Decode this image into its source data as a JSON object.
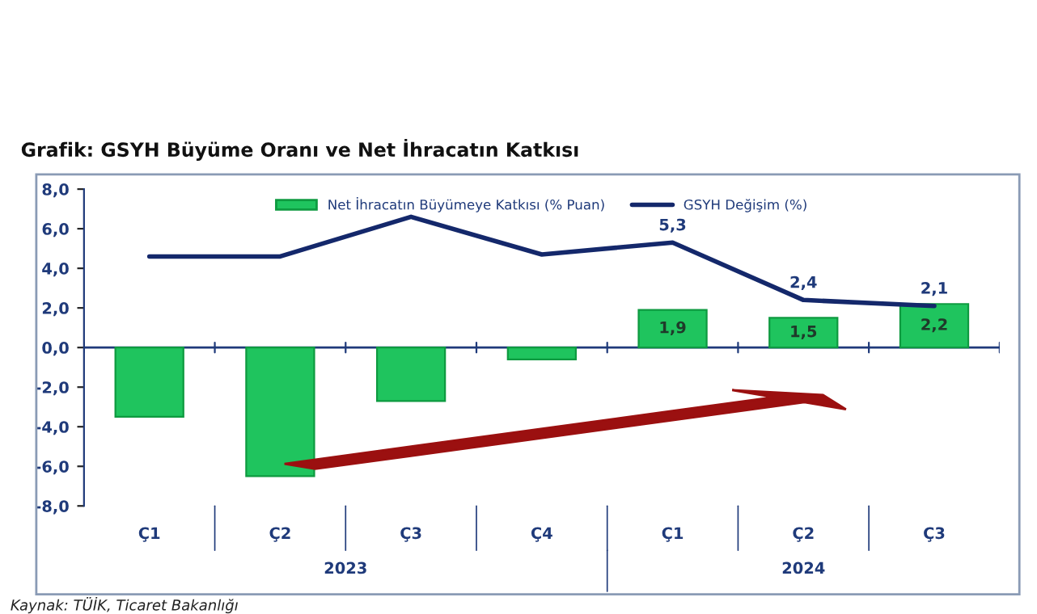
{
  "chart_data": {
    "type": "bar",
    "title": "Grafik: GSYH Büyüme Oranı ve Net İhracatın Katkısı",
    "categories": [
      "Ç1",
      "Ç2",
      "Ç3",
      "Ç4",
      "Ç1",
      "Ç2",
      "Ç3"
    ],
    "series": [
      {
        "name": "Net İhracatın Büyümeye Katkısı (% Puan)",
        "color": "#1fc45e",
        "values": [
          -3.5,
          -6.5,
          -2.7,
          -0.6,
          1.9,
          1.5,
          2.2
        ],
        "value_labels": [
          null,
          null,
          null,
          null,
          "1,9",
          "1,5",
          "2,2"
        ]
      },
      {
        "name": "GSYH Değişim (%)",
        "type": "line",
        "color": "#14286b",
        "values": [
          4.6,
          4.6,
          6.6,
          4.7,
          5.3,
          2.4,
          2.1
        ],
        "value_labels": [
          null,
          null,
          null,
          null,
          "5,3",
          "2,4",
          "2,1"
        ]
      }
    ],
    "ylim": [
      -8,
      8
    ],
    "yticks": [
      {
        "value": 8,
        "label": "8,0"
      },
      {
        "value": 6,
        "label": "6,0"
      },
      {
        "value": 4,
        "label": "4,0"
      },
      {
        "value": 2,
        "label": "2,0"
      },
      {
        "value": 0,
        "label": "0,0"
      },
      {
        "value": -2,
        "label": "-2,0"
      },
      {
        "value": -4,
        "label": "-4,0"
      },
      {
        "value": -6,
        "label": "-6,0"
      },
      {
        "value": -8,
        "label": "-8,0"
      }
    ],
    "ref_lines": [
      {
        "axis": "y",
        "value": 0,
        "color": "#1f3a7a"
      }
    ],
    "grid": false,
    "legend": "top",
    "marker": "none",
    "annotations": [
      "2023",
      "2024",
      "Kaynak: TÜİK, Ticaret Bakanlığı"
    ]
  }
}
